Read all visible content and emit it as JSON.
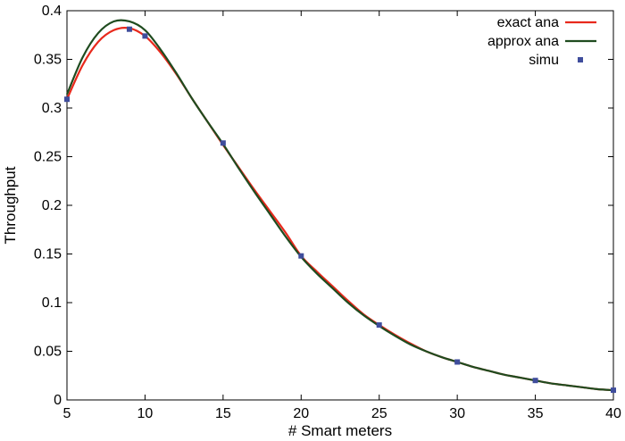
{
  "chart_data": {
    "type": "line",
    "xlabel": "# Smart meters",
    "ylabel": "Throughput",
    "xlim": [
      5,
      40
    ],
    "ylim": [
      0,
      0.4
    ],
    "xticks": [
      "5",
      "10",
      "15",
      "20",
      "25",
      "30",
      "35",
      "40"
    ],
    "yticks": [
      "0",
      "0.05",
      "0.1",
      "0.15",
      "0.2",
      "0.25",
      "0.3",
      "0.35",
      "0.4"
    ],
    "grid": false,
    "legend_position": "top-right",
    "series": [
      {
        "name": "exact ana",
        "style": "line",
        "color": "#e8291c",
        "x": [
          5,
          6,
          7,
          8,
          9,
          10,
          11,
          12,
          13,
          14,
          15,
          16,
          17,
          18,
          19,
          20,
          21,
          22,
          23,
          24,
          25,
          26,
          27,
          28,
          29,
          30,
          31,
          32,
          33,
          34,
          35,
          36,
          37,
          38,
          39,
          40
        ],
        "y": [
          0.309,
          0.344,
          0.368,
          0.38,
          0.382,
          0.374,
          0.357,
          0.335,
          0.31,
          0.286,
          0.262,
          0.239,
          0.216,
          0.194,
          0.172,
          0.148,
          0.132,
          0.117,
          0.102,
          0.088,
          0.077,
          0.067,
          0.058,
          0.05,
          0.044,
          0.039,
          0.034,
          0.03,
          0.026,
          0.023,
          0.02,
          0.017,
          0.015,
          0.013,
          0.011,
          0.01
        ]
      },
      {
        "name": "approx ana",
        "style": "line",
        "color": "#1f4b1f",
        "x": [
          5,
          6,
          7,
          8,
          9,
          10,
          11,
          12,
          13,
          14,
          15,
          16,
          17,
          18,
          19,
          20,
          21,
          22,
          23,
          24,
          25,
          26,
          27,
          28,
          29,
          30,
          31,
          32,
          33,
          34,
          35,
          36,
          37,
          38,
          39,
          40
        ],
        "y": [
          0.314,
          0.352,
          0.377,
          0.389,
          0.389,
          0.38,
          0.36,
          0.336,
          0.31,
          0.286,
          0.263,
          0.238,
          0.214,
          0.191,
          0.168,
          0.147,
          0.13,
          0.115,
          0.1,
          0.087,
          0.076,
          0.066,
          0.057,
          0.05,
          0.044,
          0.039,
          0.034,
          0.03,
          0.026,
          0.023,
          0.02,
          0.017,
          0.015,
          0.013,
          0.011,
          0.01
        ]
      },
      {
        "name": "simu",
        "style": "points",
        "color": "#3f4d9c",
        "x": [
          5,
          9,
          10,
          15,
          20,
          25,
          30,
          35,
          40
        ],
        "y": [
          0.309,
          0.381,
          0.374,
          0.264,
          0.148,
          0.077,
          0.039,
          0.02,
          0.01
        ]
      }
    ]
  }
}
